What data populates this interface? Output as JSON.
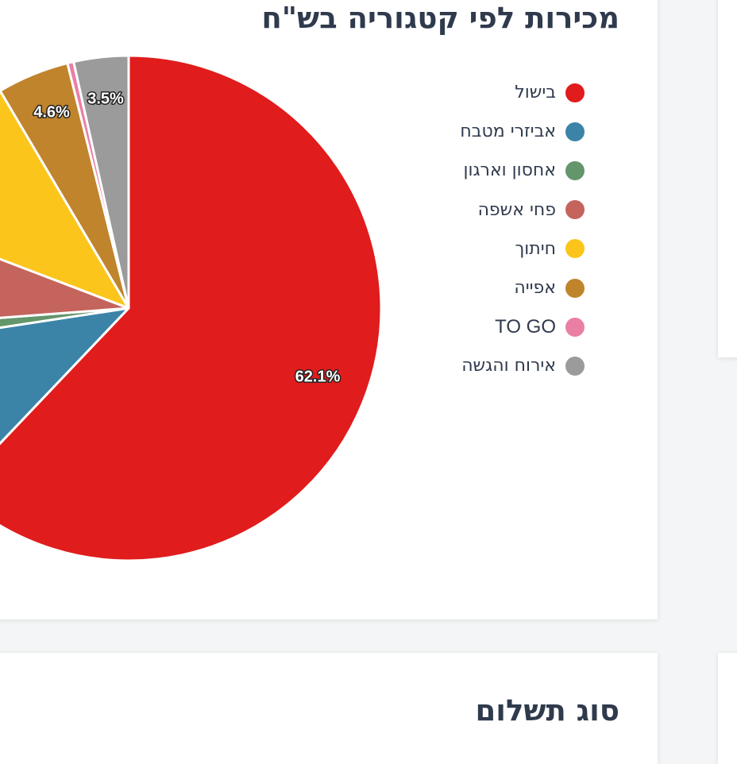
{
  "main_card": {
    "title": "מכירות לפי קטגוריה בש\"ח"
  },
  "bottom_card": {
    "title": "סוג תשלום"
  },
  "chart_data": {
    "type": "pie",
    "title": "מכירות לפי קטגוריה בש\"ח",
    "legend_position": "right",
    "labels": [
      "בישול",
      "אביזרי מטבח",
      "אחסון וארגון",
      "פחי אשפה",
      "חיתוך",
      "אפייה",
      "TO GO",
      "אירוח והגשה"
    ],
    "values": [
      62.1,
      10.5,
      1.2,
      7.0,
      10.7,
      4.6,
      0.4,
      3.5
    ],
    "visible_percent_labels": [
      "62.1%",
      "4.6%",
      "3.5%"
    ],
    "colors": [
      "#e01c1c",
      "#3b84a8",
      "#63966a",
      "#c4645c",
      "#fcc51c",
      "#c0842c",
      "#ea7fa6",
      "#9b9b9b"
    ]
  }
}
